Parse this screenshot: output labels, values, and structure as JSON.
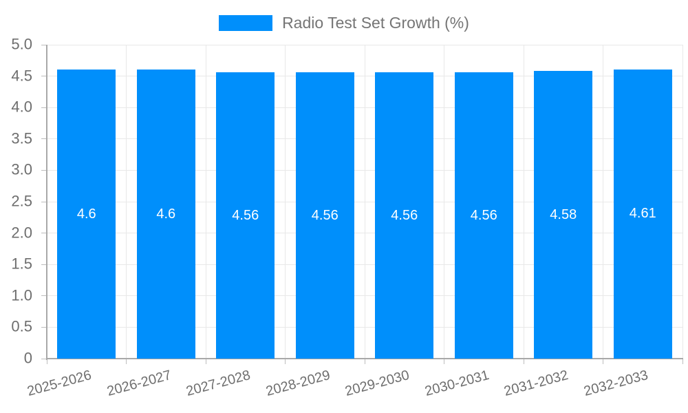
{
  "chart_data": {
    "type": "bar",
    "title": "Radio Test Set Growth (%)",
    "legend_position": "top",
    "grid": true,
    "categories": [
      "2025-2026",
      "2026-2027",
      "2027-2028",
      "2028-2029",
      "2029-2030",
      "2030-2031",
      "2031-2032",
      "2032-2033"
    ],
    "series": [
      {
        "name": "Radio Test Set Growth (%)",
        "values": [
          4.6,
          4.6,
          4.56,
          4.56,
          4.56,
          4.56,
          4.58,
          4.61
        ],
        "value_labels": [
          "4.6",
          "4.6",
          "4.56",
          "4.56",
          "4.56",
          "4.56",
          "4.58",
          "4.61"
        ]
      }
    ],
    "xlabel": "",
    "ylabel": "",
    "ylim": [
      0,
      5
    ],
    "yticks": [
      0,
      0.5,
      1.0,
      1.5,
      2.0,
      2.5,
      3.0,
      3.5,
      4.0,
      4.5,
      5.0
    ],
    "ytick_labels": [
      "0",
      "0.5",
      "1.0",
      "1.5",
      "2.0",
      "2.5",
      "3.0",
      "3.5",
      "4.0",
      "4.5",
      "5.0"
    ],
    "colors": {
      "bar": "#008FFB",
      "grid": "#e8e8e8",
      "axis": "#a8a8a8",
      "text": "#6e6e6e",
      "legend_text": "#757575",
      "value_text": "#ffffff"
    }
  }
}
